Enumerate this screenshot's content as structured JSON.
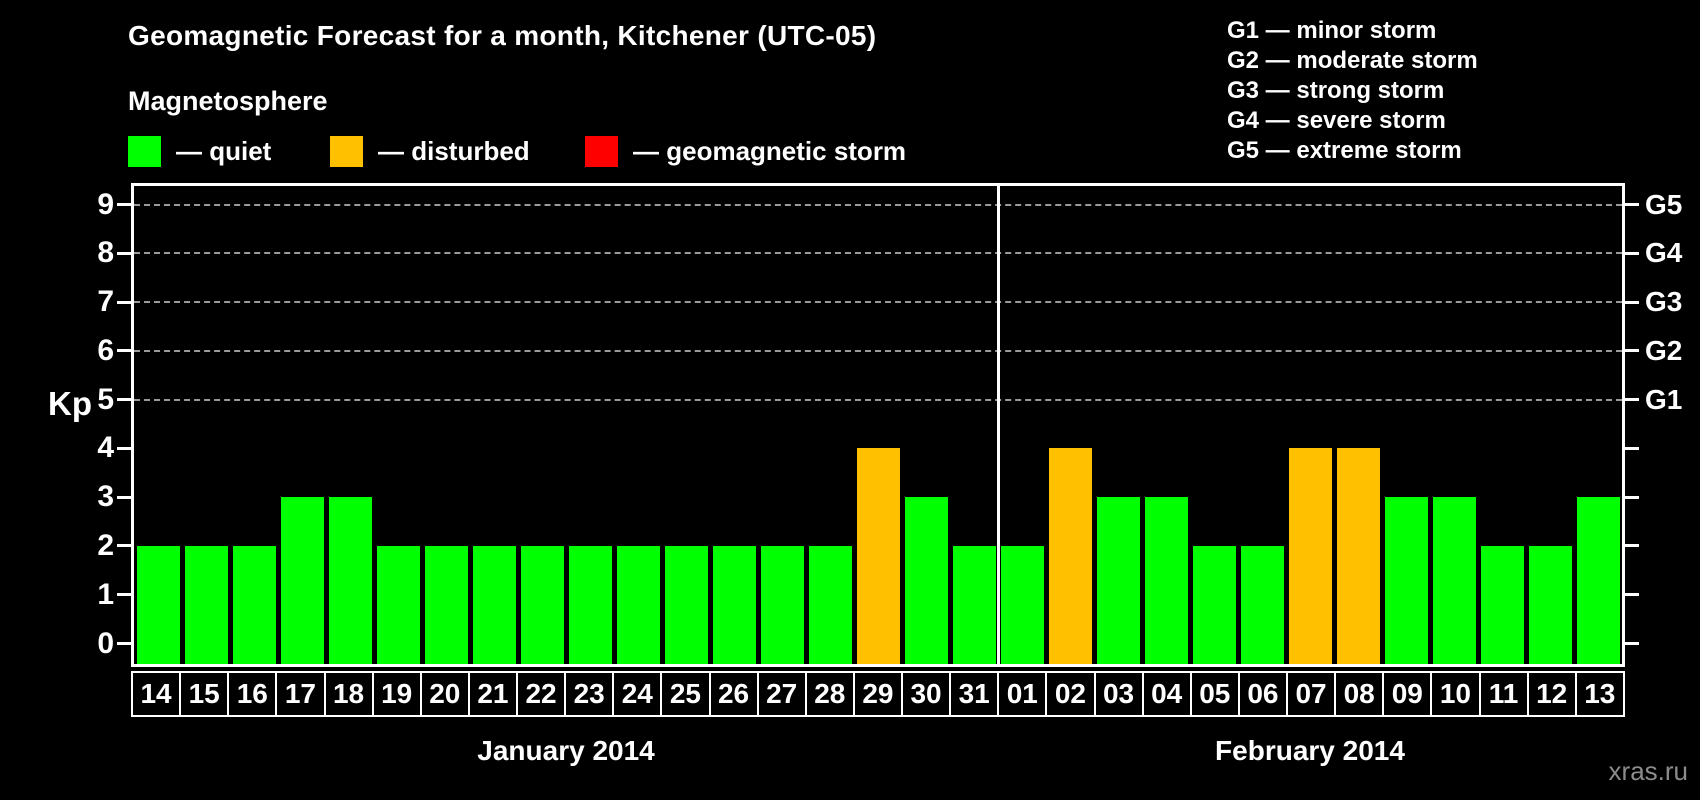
{
  "title": "Geomagnetic Forecast for a month, Kitchener (UTC-05)",
  "legend": {
    "heading": "Magnetosphere",
    "items": [
      {
        "name": "quiet",
        "label": "— quiet",
        "color": "#00ff00"
      },
      {
        "name": "disturbed",
        "label": "— disturbed",
        "color": "#ffc000"
      },
      {
        "name": "storm",
        "label": "— geomagnetic storm",
        "color": "#ff0000"
      }
    ]
  },
  "storm_scale_legend": [
    "G1 — minor storm",
    "G2 — moderate storm",
    "G3 — strong storm",
    "G4 — severe storm",
    "G5 — extreme storm"
  ],
  "watermark": "xras.ru",
  "chart_data": {
    "type": "bar",
    "title": "Geomagnetic Forecast for a month, Kitchener (UTC-05)",
    "ylabel": "Kp",
    "ylim": [
      0,
      9
    ],
    "yticks": [
      0,
      1,
      2,
      3,
      4,
      5,
      6,
      7,
      8,
      9
    ],
    "gridlines_at_kp": [
      5,
      6,
      7,
      8,
      9
    ],
    "grid": "dashed horizontal at Kp 5-9 only",
    "legend_position": "top-left and top-right",
    "right_axis": [
      {
        "kp": 5,
        "label": "G1"
      },
      {
        "kp": 6,
        "label": "G2"
      },
      {
        "kp": 7,
        "label": "G3"
      },
      {
        "kp": 8,
        "label": "G4"
      },
      {
        "kp": 9,
        "label": "G5"
      }
    ],
    "status_colors": {
      "quiet": "#00ff00",
      "disturbed": "#ffc000",
      "storm": "#ff0000"
    },
    "months": [
      {
        "label": "January 2014",
        "days": [
          "14",
          "15",
          "16",
          "17",
          "18",
          "19",
          "20",
          "21",
          "22",
          "23",
          "24",
          "25",
          "26",
          "27",
          "28",
          "29",
          "30",
          "31"
        ],
        "values": [
          2,
          2,
          2,
          3,
          3,
          2,
          2,
          2,
          2,
          2,
          2,
          2,
          2,
          2,
          2,
          4,
          3,
          2
        ],
        "status": [
          "quiet",
          "quiet",
          "quiet",
          "quiet",
          "quiet",
          "quiet",
          "quiet",
          "quiet",
          "quiet",
          "quiet",
          "quiet",
          "quiet",
          "quiet",
          "quiet",
          "quiet",
          "disturbed",
          "quiet",
          "quiet"
        ]
      },
      {
        "label": "February 2014",
        "days": [
          "01",
          "02",
          "03",
          "04",
          "05",
          "06",
          "07",
          "08",
          "09",
          "10",
          "11",
          "12",
          "13"
        ],
        "values": [
          2,
          4,
          3,
          3,
          2,
          2,
          4,
          4,
          3,
          3,
          2,
          2,
          3
        ],
        "status": [
          "quiet",
          "disturbed",
          "quiet",
          "quiet",
          "quiet",
          "quiet",
          "disturbed",
          "disturbed",
          "quiet",
          "quiet",
          "quiet",
          "quiet",
          "quiet"
        ]
      }
    ]
  }
}
